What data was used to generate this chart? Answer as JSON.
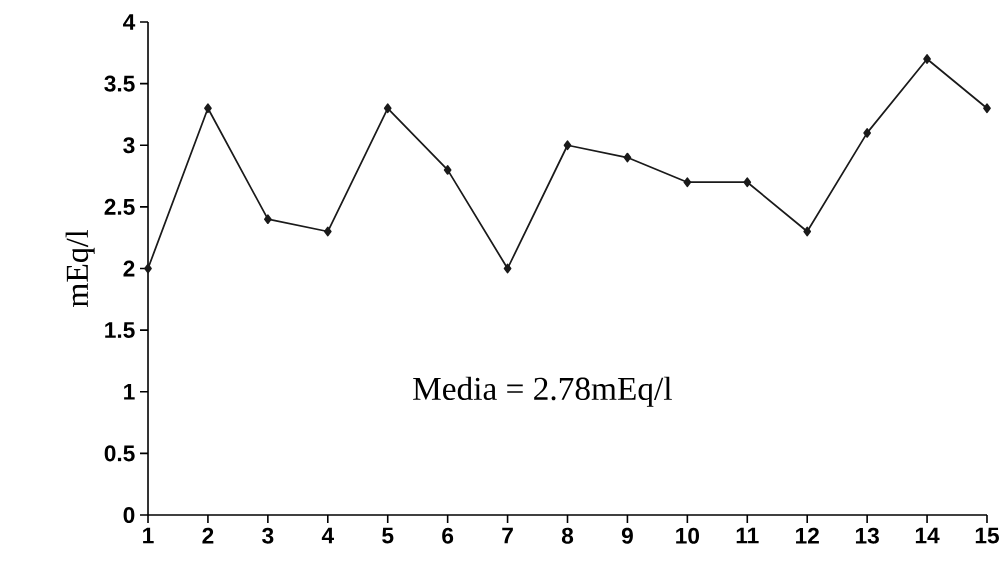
{
  "chart_data": {
    "type": "line",
    "ylabel": "mEq/l",
    "categories": [
      "1",
      "2",
      "3",
      "4",
      "5",
      "6",
      "7",
      "8",
      "9",
      "10",
      "11",
      "12",
      "13",
      "14",
      "15"
    ],
    "values": [
      2.0,
      3.3,
      2.4,
      2.3,
      3.3,
      2.8,
      2.0,
      3.0,
      2.9,
      2.7,
      2.7,
      2.3,
      3.1,
      3.7,
      3.3
    ],
    "color": "#1a1a1a",
    "marker": "diamond",
    "line_style": "solid",
    "ylim": [
      0,
      4
    ],
    "yticks": [
      0,
      0.5,
      1,
      1.5,
      2,
      2.5,
      3,
      3.5,
      4
    ],
    "annotations": [
      "Media = 2.78mEq/l"
    ]
  }
}
